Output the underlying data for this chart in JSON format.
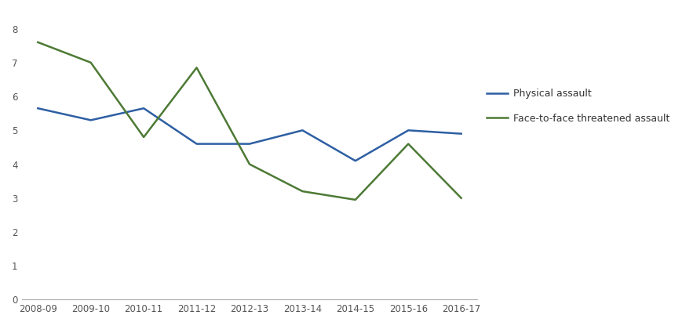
{
  "categories": [
    "2008-09",
    "2009-10",
    "2010-11",
    "2011-12",
    "2012-13",
    "2013-14",
    "2014-15",
    "2015-16",
    "2016-17"
  ],
  "physical_assault": [
    5.65,
    5.3,
    5.65,
    4.6,
    4.6,
    5.0,
    4.1,
    5.0,
    4.9
  ],
  "face_to_face": [
    7.6,
    7.0,
    4.8,
    6.85,
    4.0,
    3.2,
    2.95,
    4.6,
    3.0
  ],
  "physical_color": "#2e5fa3",
  "face_color": "#4d7a35",
  "physical_label": "Physical assault",
  "face_label": "Face-to-face threatened assault",
  "ylim": [
    0,
    8.5
  ],
  "yticks": [
    0,
    1,
    2,
    3,
    4,
    5,
    6,
    7,
    8
  ],
  "background_color": "#ffffff",
  "line_width": 1.8,
  "tick_fontsize": 8.5,
  "legend_fontsize": 9.0
}
